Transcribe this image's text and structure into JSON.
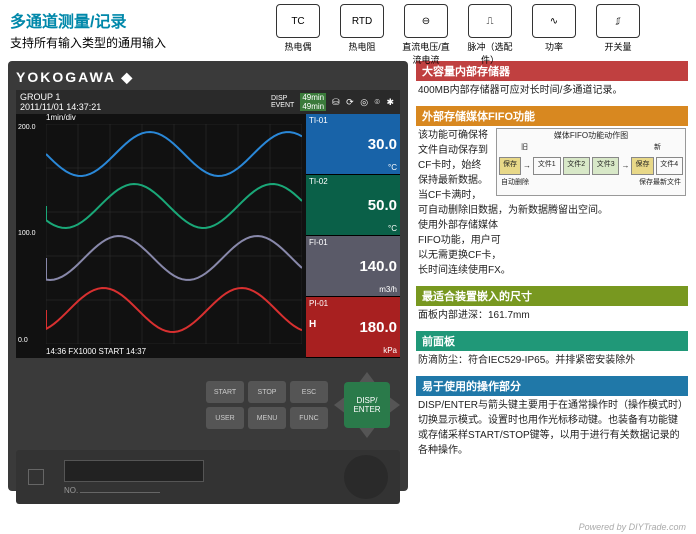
{
  "title": "多通道测量/记录",
  "title_color": "#0088aa",
  "subtitle": "支持所有输入类型的通用输入",
  "icons": [
    {
      "glyph": "TC",
      "label": "热电偶"
    },
    {
      "glyph": "RTD",
      "label": "热电阻"
    },
    {
      "glyph": "⊖",
      "label": "直流电压/直流电流"
    },
    {
      "glyph": "⎍",
      "label": "脉冲（选配件）"
    },
    {
      "glyph": "∿",
      "label": "功率"
    },
    {
      "glyph": "⎎",
      "label": "开关量"
    }
  ],
  "brand": "YOKOGAWA ◆",
  "screen": {
    "group": "GROUP 1",
    "date": "2011/11/01",
    "time": "14:37:21",
    "disp_event": "DISP\nEVENT",
    "dur1": "49min",
    "dur2": "49min",
    "scale": "1min/div",
    "yaxis_top": "200.0",
    "yaxis_mid": "100.0",
    "yaxis_bot": "0.0",
    "footer": "14:36 FX1000 START  14:37",
    "channels": [
      {
        "tag": "TI-01",
        "val": "30.0",
        "unit": "°C",
        "bg": "#1863a8",
        "wave": "#2a88d8"
      },
      {
        "tag": "TI-02",
        "val": "50.0",
        "unit": "°C",
        "bg": "#0a6048",
        "wave": "#1aa878"
      },
      {
        "tag": "FI-01",
        "val": "140.0",
        "unit": "m3/h",
        "bg": "#5a5a68",
        "wave": "#8888aa"
      },
      {
        "tag": "PI-01",
        "h": "H",
        "val": "180.0",
        "unit": "kPa",
        "bg": "#a82020",
        "wave": "#d83030"
      }
    ],
    "top_icons": "⛁ ⟳ ◎ ⌾ ✱"
  },
  "buttons": {
    "start": "START",
    "stop": "STOP",
    "esc": "ESC",
    "user": "USER",
    "menu": "MENU",
    "func": "FUNC",
    "enter": "DISP/\nENTER"
  },
  "slot_no": "NO.",
  "sections": [
    {
      "h": "大容量内部存储器",
      "color": "#c04040",
      "body": "400MB内部存储器可应对长时间/多通道记录。"
    },
    {
      "h": "外部存储媒体FIFO功能",
      "color": "#d88820",
      "body": "该功能可确保将文件自动保存到CF卡时，始终保持最新数据。\n当CF卡满时，可自动删除旧数据，为新数据腾留出空间。\n使用外部存储媒体\nFIFO功能，用户可\n以无需更换CF卡，\n长时间连续使用FX。",
      "diagram": true
    },
    {
      "h": "最适合装置嵌入的尺寸",
      "color": "#789820",
      "body": "面板内部进深：161.7mm"
    },
    {
      "h": "前面板",
      "color": "#209878",
      "body": "防滴防尘：符合IEC529-IP65。并排紧密安装除外"
    },
    {
      "h": "易于使用的操作部分",
      "color": "#2078a8",
      "body": "DISP/ENTER与箭头键主要用于在通常操作时（操作模式时）切换显示模式。设置时也用作光标移动键。也装备有功能键或存储采样START/STOP键等，以用于进行有关数据记录的各种操作。"
    }
  ],
  "fifo": {
    "title": "媒体FIFO功能动作图",
    "old": "旧",
    "new": "新",
    "save": "保存",
    "files": [
      "文件1",
      "文件2",
      "文件3",
      "文件4"
    ],
    "note": "自动删除",
    "tip": "保存最新文件"
  },
  "footer": "Powered by DIYTrade.com"
}
